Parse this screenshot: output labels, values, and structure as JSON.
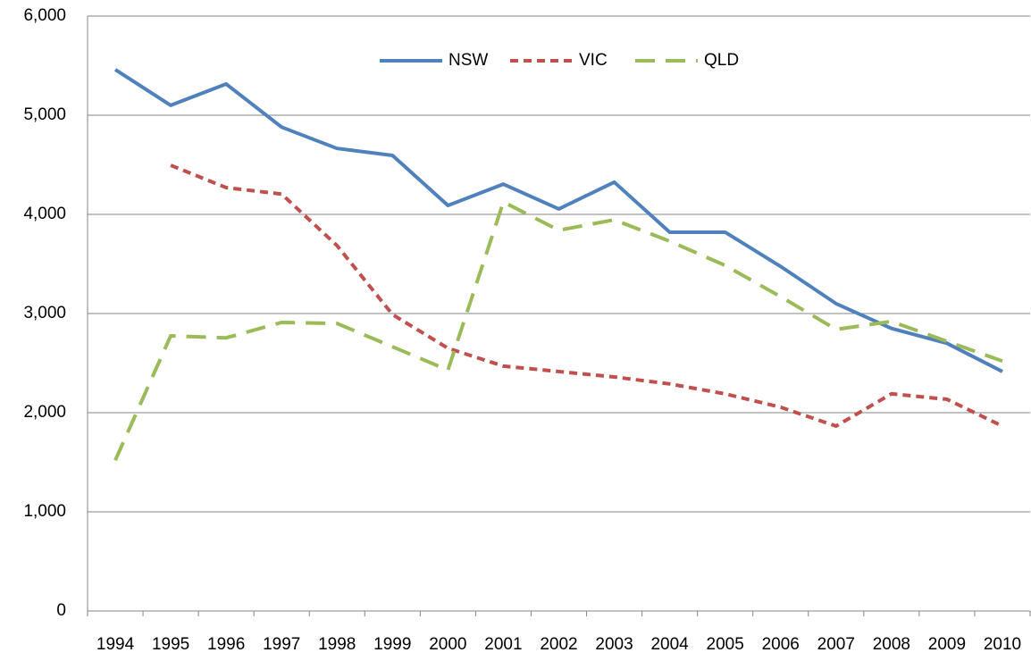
{
  "chart_data": {
    "type": "line",
    "categories": [
      "1994",
      "1995",
      "1996",
      "1997",
      "1998",
      "1999",
      "2000",
      "2001",
      "2002",
      "2003",
      "2004",
      "2005",
      "2006",
      "2007",
      "2008",
      "2009",
      "2010"
    ],
    "series": [
      {
        "name": "NSW",
        "color": "#4f81bd",
        "dash": "solid",
        "values": [
          5460,
          5100,
          5315,
          4880,
          4665,
          4595,
          4090,
          4305,
          4055,
          4325,
          3820,
          3820,
          3475,
          3100,
          2850,
          2700,
          2415
        ]
      },
      {
        "name": "VIC",
        "color": "#c0504d",
        "dash": "dot",
        "values": [
          null,
          4495,
          4270,
          4205,
          3685,
          2990,
          2650,
          2470,
          2415,
          2360,
          2290,
          2190,
          2055,
          1865,
          2190,
          2135,
          1865
        ]
      },
      {
        "name": "QLD",
        "color": "#9bbb59",
        "dash": "dash",
        "values": [
          1520,
          2775,
          2755,
          2910,
          2900,
          2665,
          2430,
          4125,
          3840,
          3945,
          3730,
          3485,
          3170,
          2840,
          2920,
          2720,
          2520
        ]
      }
    ],
    "ylim": [
      0,
      6000
    ],
    "yticks": [
      0,
      {
        "value": 1000,
        "label": "1,000"
      },
      {
        "value": 2000,
        "label": "2,000"
      },
      {
        "value": 3000,
        "label": "3,000"
      },
      {
        "value": 4000,
        "label": "4,000"
      },
      {
        "value": 5000,
        "label": "5,000"
      },
      {
        "value": 6000,
        "label": "6,000"
      }
    ],
    "grid": true,
    "legend": "top"
  }
}
